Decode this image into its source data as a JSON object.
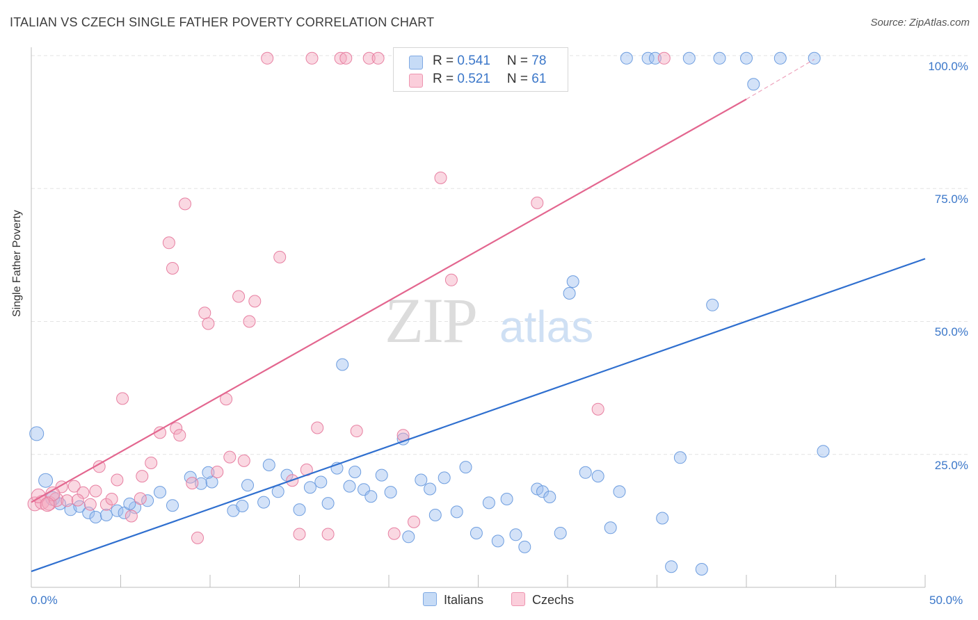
{
  "header": {
    "title": "ITALIAN VS CZECH SINGLE FATHER POVERTY CORRELATION CHART",
    "source": "Source: ZipAtlas.com"
  },
  "watermark": {
    "zip": "ZIP",
    "atlas": "atlas"
  },
  "legend": {
    "italians": {
      "r_label": "R = ",
      "r_value": "0.541",
      "n_label": "N = ",
      "n_value": "78",
      "color": "#9dbfef"
    },
    "czechs": {
      "r_label": "R = ",
      "r_value": "0.521",
      "n_label": "N = ",
      "n_value": "61",
      "color": "#f4a9bf"
    }
  },
  "bottom_legend": {
    "italians": "Italians",
    "czechs": "Czechs"
  },
  "chart_data": {
    "type": "scatter",
    "title": "ITALIAN VS CZECH SINGLE FATHER POVERTY CORRELATION CHART",
    "xlabel": "",
    "ylabel": "Single Father Poverty",
    "xlim": [
      0,
      50
    ],
    "ylim": [
      0,
      100
    ],
    "x_tick_labels": [
      "0.0%",
      "50.0%"
    ],
    "y_tick_labels": [
      "25.0%",
      "50.0%",
      "75.0%",
      "100.0%"
    ],
    "y_ticks": [
      25,
      50,
      75,
      100
    ],
    "grid": true,
    "legend_position": "top-center",
    "series": [
      {
        "name": "Italians",
        "color": "#9dbfef",
        "stroke": "#6d9ddf",
        "trend_color": "#2f6fcf",
        "trend": {
          "x0": 0,
          "y0": 3.0,
          "x1": 50,
          "y1": 61.8
        },
        "points": [
          [
            0.3,
            28.9
          ],
          [
            0.8,
            20.1
          ],
          [
            1.2,
            16.7
          ],
          [
            1.6,
            15.7
          ],
          [
            2.2,
            14.6
          ],
          [
            2.7,
            15.2
          ],
          [
            3.2,
            14.0
          ],
          [
            3.6,
            13.2
          ],
          [
            4.2,
            13.6
          ],
          [
            4.8,
            14.4
          ],
          [
            5.2,
            14.0
          ],
          [
            5.8,
            15.0
          ],
          [
            6.5,
            16.3
          ],
          [
            7.2,
            17.9
          ],
          [
            7.9,
            15.4
          ],
          [
            8.9,
            20.7
          ],
          [
            9.5,
            19.5
          ],
          [
            10.1,
            19.8
          ],
          [
            11.3,
            14.4
          ],
          [
            11.8,
            15.3
          ],
          [
            12.1,
            19.2
          ],
          [
            13.0,
            16.0
          ],
          [
            13.3,
            23.0
          ],
          [
            13.8,
            18.0
          ],
          [
            14.3,
            21.1
          ],
          [
            15.0,
            14.6
          ],
          [
            15.6,
            18.8
          ],
          [
            16.2,
            19.8
          ],
          [
            16.6,
            15.8
          ],
          [
            17.1,
            22.4
          ],
          [
            17.8,
            19.0
          ],
          [
            18.1,
            21.7
          ],
          [
            18.6,
            18.4
          ],
          [
            19.0,
            17.1
          ],
          [
            19.6,
            21.1
          ],
          [
            20.1,
            17.9
          ],
          [
            20.8,
            27.9
          ],
          [
            21.1,
            9.5
          ],
          [
            21.8,
            20.2
          ],
          [
            22.3,
            18.5
          ],
          [
            22.6,
            13.6
          ],
          [
            23.1,
            20.6
          ],
          [
            23.8,
            14.2
          ],
          [
            24.3,
            22.6
          ],
          [
            24.9,
            10.2
          ],
          [
            25.6,
            15.9
          ],
          [
            26.1,
            8.7
          ],
          [
            26.6,
            16.6
          ],
          [
            27.1,
            9.9
          ],
          [
            27.6,
            7.6
          ],
          [
            28.3,
            18.5
          ],
          [
            28.6,
            18.0
          ],
          [
            29.0,
            17.0
          ],
          [
            29.6,
            10.2
          ],
          [
            30.1,
            55.3
          ],
          [
            30.3,
            57.5
          ],
          [
            31.0,
            21.6
          ],
          [
            31.7,
            20.9
          ],
          [
            32.9,
            18.0
          ],
          [
            32.4,
            11.2
          ],
          [
            33.3,
            99.5
          ],
          [
            34.5,
            99.5
          ],
          [
            34.9,
            99.5
          ],
          [
            35.3,
            13.0
          ],
          [
            35.8,
            3.9
          ],
          [
            36.3,
            24.4
          ],
          [
            36.8,
            99.5
          ],
          [
            37.5,
            3.4
          ],
          [
            38.1,
            53.1
          ],
          [
            38.5,
            99.5
          ],
          [
            40.0,
            99.5
          ],
          [
            40.4,
            94.6
          ],
          [
            41.9,
            99.5
          ],
          [
            44.3,
            25.6
          ],
          [
            43.8,
            99.5
          ],
          [
            5.5,
            15.7
          ],
          [
            9.9,
            21.6
          ],
          [
            17.4,
            41.9
          ]
        ]
      },
      {
        "name": "Czechs",
        "color": "#f4a9bf",
        "stroke": "#e77fa1",
        "trend_color": "#e3668f",
        "trend": {
          "x0": 0,
          "y0": 16.0,
          "x1": 40,
          "y1": 91.8
        },
        "trend_dashed_to": {
          "x": 43.8,
          "y": 99.3
        },
        "points": [
          [
            0.2,
            15.7
          ],
          [
            0.6,
            16.0
          ],
          [
            1.0,
            15.8
          ],
          [
            1.4,
            16.5
          ],
          [
            1.7,
            18.9
          ],
          [
            2.0,
            16.3
          ],
          [
            2.4,
            19.0
          ],
          [
            2.9,
            17.8
          ],
          [
            3.3,
            15.6
          ],
          [
            3.6,
            18.1
          ],
          [
            4.2,
            15.6
          ],
          [
            4.5,
            16.6
          ],
          [
            5.1,
            35.5
          ],
          [
            5.6,
            13.4
          ],
          [
            6.1,
            16.7
          ],
          [
            6.2,
            20.9
          ],
          [
            6.7,
            23.4
          ],
          [
            7.2,
            29.1
          ],
          [
            7.7,
            64.8
          ],
          [
            7.9,
            60.0
          ],
          [
            8.1,
            29.9
          ],
          [
            8.3,
            28.6
          ],
          [
            8.6,
            72.1
          ],
          [
            9.0,
            19.6
          ],
          [
            9.3,
            9.3
          ],
          [
            9.7,
            51.6
          ],
          [
            9.9,
            49.6
          ],
          [
            10.4,
            21.7
          ],
          [
            10.9,
            35.4
          ],
          [
            11.1,
            24.5
          ],
          [
            11.6,
            54.7
          ],
          [
            11.9,
            23.8
          ],
          [
            12.2,
            50.0
          ],
          [
            12.5,
            53.8
          ],
          [
            13.2,
            99.5
          ],
          [
            13.9,
            62.1
          ],
          [
            14.6,
            20.1
          ],
          [
            15.0,
            10.0
          ],
          [
            15.4,
            22.1
          ],
          [
            15.7,
            99.5
          ],
          [
            16.0,
            30.0
          ],
          [
            16.6,
            10.0
          ],
          [
            17.3,
            99.5
          ],
          [
            17.6,
            99.5
          ],
          [
            18.2,
            29.4
          ],
          [
            18.9,
            99.5
          ],
          [
            19.4,
            99.5
          ],
          [
            20.3,
            10.1
          ],
          [
            20.8,
            28.6
          ],
          [
            21.4,
            12.3
          ],
          [
            22.9,
            77.0
          ],
          [
            23.5,
            57.8
          ],
          [
            28.3,
            72.3
          ],
          [
            31.7,
            33.5
          ],
          [
            35.4,
            99.5
          ],
          [
            3.8,
            22.7
          ],
          [
            4.8,
            20.2
          ],
          [
            2.6,
            16.4
          ],
          [
            0.4,
            17.2
          ],
          [
            1.2,
            17.6
          ],
          [
            0.9,
            15.6
          ]
        ]
      }
    ]
  }
}
